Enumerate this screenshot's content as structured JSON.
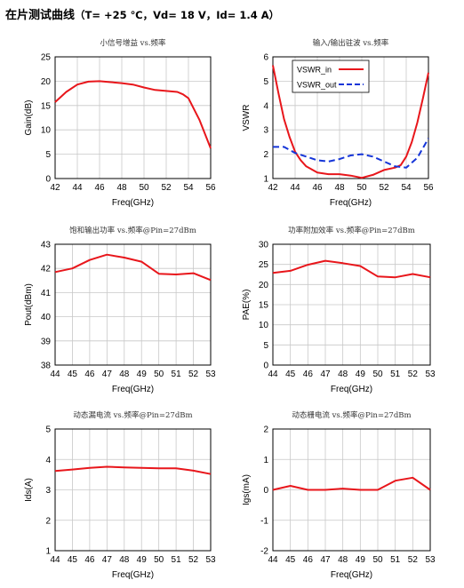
{
  "heading": {
    "title": "在片测试曲线",
    "conditions": "（T= +25 ℃，Vd= 18 V，Id= 1.4 A）"
  },
  "chart_data": [
    {
      "type": "line",
      "title": "小信号增益 vs.频率",
      "xlabel": "Freq(GHz)",
      "ylabel": "Gain(dB)",
      "xlim": [
        42,
        56
      ],
      "ylim": [
        0,
        25
      ],
      "xticks": [
        42,
        44,
        46,
        48,
        50,
        52,
        54,
        56
      ],
      "yticks": [
        0,
        5,
        10,
        15,
        20,
        25
      ],
      "series": [
        {
          "color": "#e8161b",
          "dash": "solid",
          "x": [
            42,
            43,
            44,
            45,
            46,
            47,
            48,
            49,
            50,
            51,
            52,
            53,
            53.5,
            54,
            55,
            56
          ],
          "y": [
            15.7,
            17.8,
            19.3,
            19.9,
            20.0,
            19.8,
            19.6,
            19.3,
            18.7,
            18.2,
            18.0,
            17.8,
            17.3,
            16.5,
            12.0,
            6.2
          ]
        }
      ]
    },
    {
      "type": "line",
      "title": "输入/输出驻波 vs.频率",
      "xlabel": "Freq(GHz)",
      "ylabel": "VSWR",
      "xlim": [
        42,
        56
      ],
      "ylim": [
        1,
        6
      ],
      "xticks": [
        42,
        44,
        46,
        48,
        50,
        52,
        54,
        56
      ],
      "yticks": [
        1,
        2,
        3,
        4,
        5,
        6
      ],
      "legend": "top-left",
      "series": [
        {
          "name": "VSWR_in",
          "color": "#e8161b",
          "dash": "solid",
          "x": [
            42,
            42.5,
            43,
            43.5,
            44,
            44.5,
            45,
            46,
            47,
            48,
            49,
            50,
            51,
            52,
            53,
            53.5,
            54,
            54.5,
            55,
            55.5,
            56
          ],
          "y": [
            5.65,
            4.5,
            3.45,
            2.7,
            2.1,
            1.75,
            1.5,
            1.25,
            1.18,
            1.18,
            1.12,
            1.03,
            1.15,
            1.35,
            1.45,
            1.55,
            1.9,
            2.5,
            3.3,
            4.3,
            5.35
          ]
        },
        {
          "name": "VSWR_out",
          "color": "#1535d8",
          "dash": "dashed",
          "x": [
            42,
            43,
            44,
            45,
            46,
            47,
            48,
            49,
            50,
            51,
            52,
            53,
            54,
            55,
            56
          ],
          "y": [
            2.3,
            2.3,
            2.05,
            1.9,
            1.75,
            1.7,
            1.8,
            1.95,
            2.0,
            1.9,
            1.7,
            1.5,
            1.45,
            1.85,
            2.65
          ]
        }
      ]
    },
    {
      "type": "line",
      "title": "饱和输出功率 vs.频率@Pin=27dBm",
      "xlabel": "Freq(GHz)",
      "ylabel": "Pout(dBm)",
      "xlim": [
        44,
        53
      ],
      "ylim": [
        38,
        43
      ],
      "xticks": [
        44,
        45,
        46,
        47,
        48,
        49,
        50,
        51,
        52,
        53
      ],
      "yticks": [
        38,
        39,
        40,
        41,
        42,
        43
      ],
      "series": [
        {
          "color": "#e8161b",
          "dash": "solid",
          "x": [
            44,
            45,
            46,
            47,
            48,
            49,
            50,
            51,
            52,
            53
          ],
          "y": [
            41.85,
            42.0,
            42.35,
            42.57,
            42.45,
            42.28,
            41.78,
            41.75,
            41.8,
            41.52
          ]
        }
      ]
    },
    {
      "type": "line",
      "title": "功率附加效率 vs.频率@Pin=27dBm",
      "xlabel": "Freq(GHz)",
      "ylabel": "PAE(%)",
      "xlim": [
        44,
        53
      ],
      "ylim": [
        0,
        30
      ],
      "xticks": [
        44,
        45,
        46,
        47,
        48,
        49,
        50,
        51,
        52,
        53
      ],
      "yticks": [
        0,
        5,
        10,
        15,
        20,
        25,
        30
      ],
      "series": [
        {
          "color": "#e8161b",
          "dash": "solid",
          "x": [
            44,
            45,
            46,
            47,
            48,
            49,
            50,
            51,
            52,
            53
          ],
          "y": [
            22.9,
            23.4,
            24.9,
            25.9,
            25.3,
            24.6,
            22.0,
            21.8,
            22.6,
            21.8
          ]
        }
      ]
    },
    {
      "type": "line",
      "title": "动态漏电流 vs.频率@Pin=27dBm",
      "xlabel": "Freq(GHz)",
      "ylabel": "Ids(A)",
      "xlim": [
        44,
        53
      ],
      "ylim": [
        1,
        5
      ],
      "xticks": [
        44,
        45,
        46,
        47,
        48,
        49,
        50,
        51,
        52,
        53
      ],
      "yticks": [
        1,
        2,
        3,
        4,
        5
      ],
      "series": [
        {
          "color": "#e8161b",
          "dash": "solid",
          "x": [
            44,
            45,
            46,
            47,
            48,
            49,
            50,
            51,
            52,
            53
          ],
          "y": [
            3.62,
            3.67,
            3.72,
            3.76,
            3.74,
            3.72,
            3.71,
            3.71,
            3.63,
            3.52
          ]
        }
      ]
    },
    {
      "type": "line",
      "title": "动态栅电流 vs.频率@Pin=27dBm",
      "xlabel": "Freq(GHz)",
      "ylabel": "Igs(mA)",
      "xlim": [
        44,
        53
      ],
      "ylim": [
        -2,
        2
      ],
      "xticks": [
        44,
        45,
        46,
        47,
        48,
        49,
        50,
        51,
        52,
        53
      ],
      "yticks": [
        -2,
        -1,
        0,
        1,
        2
      ],
      "series": [
        {
          "color": "#e8161b",
          "dash": "solid",
          "x": [
            44,
            45,
            46,
            47,
            48,
            49,
            50,
            51,
            52,
            53
          ],
          "y": [
            0.0,
            0.13,
            0.0,
            0.0,
            0.04,
            0.0,
            0.0,
            0.3,
            0.4,
            0.0
          ]
        }
      ]
    }
  ]
}
